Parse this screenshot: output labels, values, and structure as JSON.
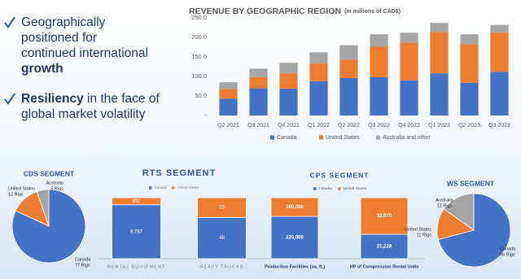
{
  "bullets": [
    {
      "lines": [
        [
          {
            "text": "Geographically",
            "bold": false
          }
        ],
        [
          {
            "text": "positioned for",
            "bold": false
          }
        ],
        [
          {
            "text": "continued international",
            "bold": false
          }
        ],
        [
          {
            "text": "growth",
            "bold": true
          }
        ]
      ]
    },
    {
      "lines": [
        [
          {
            "text": "Resiliency",
            "bold": true
          },
          {
            "text": " in the face of",
            "bold": false
          }
        ],
        [
          {
            "text": "global market volatility",
            "bold": false
          }
        ]
      ]
    }
  ],
  "chart_data": [
    {
      "type": "bar",
      "stacking": "stacked",
      "title": "REVENUE BY GEOGRAPHIC REGION",
      "subtitle": "(in millions of CAD$)",
      "categories": [
        "Q2 2021",
        "Q3 2021",
        "Q4 2021",
        "Q1 2022",
        "Q2 2022",
        "Q3 2022",
        "Q4 2022",
        "Q1 2023",
        "Q2 2023",
        "Q3 2023"
      ],
      "series": [
        {
          "name": "Canada",
          "color": "#4472c4",
          "values": [
            43,
            70,
            69,
            88,
            96,
            98,
            90,
            108,
            84,
            112
          ]
        },
        {
          "name": "United States",
          "color": "#ed7d31",
          "values": [
            25,
            28,
            39,
            45,
            47,
            78,
            97,
            106,
            99,
            101
          ]
        },
        {
          "name": "Australia and other",
          "color": "#a5a5a5",
          "values": [
            17,
            22,
            27,
            29,
            37,
            32,
            25,
            23,
            25,
            19
          ]
        }
      ],
      "ylim": [
        0,
        250
      ],
      "yticks": [
        {
          "value": 0,
          "label": "-"
        },
        {
          "value": 50,
          "label": "50.0"
        },
        {
          "value": 100,
          "label": "100.0"
        },
        {
          "value": 150,
          "label": "150.0"
        },
        {
          "value": 200,
          "label": "200.0"
        },
        {
          "value": 250,
          "label": "250.0"
        }
      ],
      "grid": false,
      "legend": "bottom"
    },
    {
      "type": "pie",
      "title": "CDS SEGMENT",
      "categories": [
        "Canada",
        "United States",
        "Australia"
      ],
      "values": [
        77,
        12,
        5
      ],
      "value_labels": [
        "77 Rigs",
        "12 Rigs",
        "5 Rigs"
      ],
      "colors": [
        "#4472c4",
        "#ed7d31",
        "#a5a5a5"
      ]
    },
    {
      "type": "bar",
      "stacking": "percent",
      "title": "RTS SEGMENT",
      "categories": [
        "RENTAL EQUIPMENT",
        "HEAVY TRUCKS"
      ],
      "series": [
        {
          "name": "Canada",
          "color": "#4472c4",
          "values": [
            6767,
            48
          ],
          "value_labels": [
            "6,767",
            "48"
          ]
        },
        {
          "name": "United States",
          "color": "#ed7d31",
          "values": [
            892,
            23
          ],
          "value_labels": [
            "892",
            "23"
          ]
        }
      ],
      "legend": "top"
    },
    {
      "type": "bar",
      "stacking": "percent",
      "title": "CPS SEGMENT",
      "categories": [
        "Production Facilities (sq. ft.)",
        "HP of Compression  Rental Units"
      ],
      "series": [
        {
          "name": "Canada",
          "color": "#4472c4",
          "values": [
            225000,
            21228
          ],
          "value_labels": [
            "225,000",
            "21,228"
          ]
        },
        {
          "name": "United States",
          "color": "#ed7d31",
          "values": [
            100000,
            32070
          ],
          "value_labels": [
            "100,000",
            "32,070"
          ]
        }
      ],
      "legend": "top"
    },
    {
      "type": "pie",
      "title": "WS SEGMENT",
      "categories": [
        "Canada",
        "United States",
        "Australia"
      ],
      "values": [
        56,
        11,
        12
      ],
      "value_labels": [
        "56 Rigs",
        "11 Rigs",
        "12 Rigs"
      ],
      "colors": [
        "#4472c4",
        "#ed7d31",
        "#a5a5a5"
      ]
    }
  ]
}
